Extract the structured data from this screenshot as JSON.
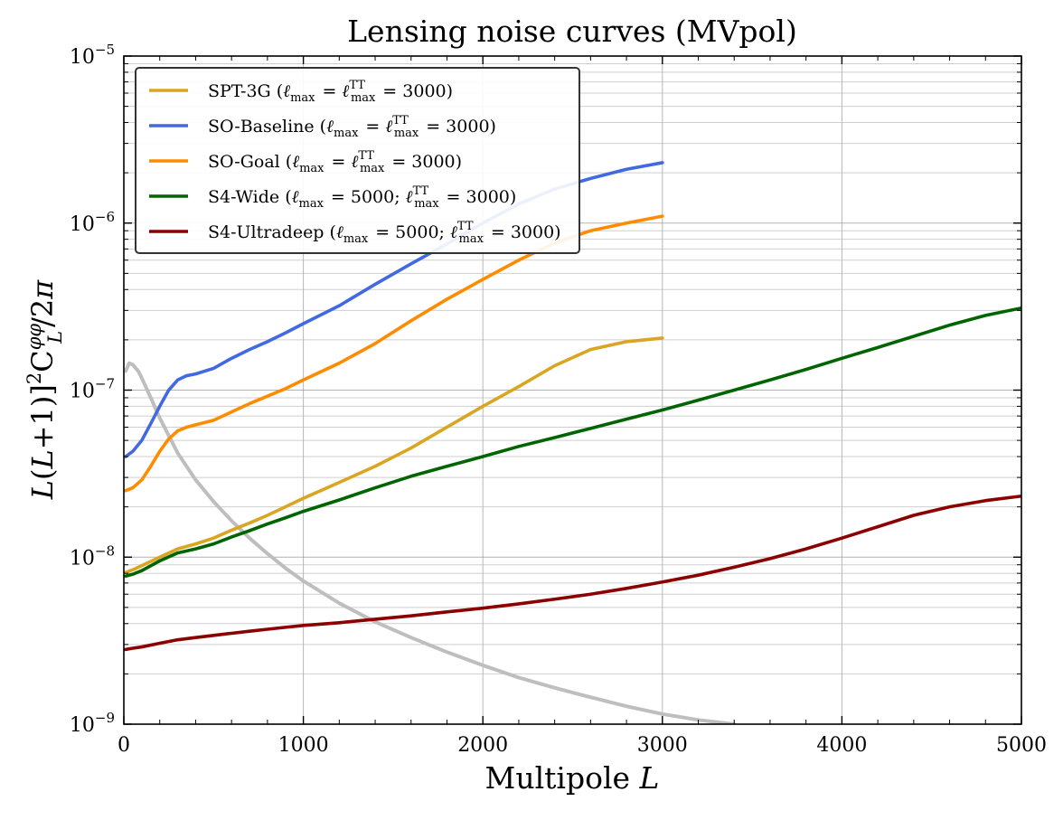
{
  "chart_data": {
    "type": "line",
    "title": "Lensing noise curves (MVpol)",
    "xlabel": "Multipole L",
    "ylabel": "L(L+1)]²C_L^φφ/2π",
    "ylabel_parts": {
      "lhs": "L(L+1)]",
      "sup2": "2",
      "C": "C",
      "sub": "L",
      "sup": "φφ",
      "rhs": "/2π"
    },
    "xlim": [
      0,
      5000
    ],
    "ylim": [
      1e-09,
      1e-05
    ],
    "yscale": "log",
    "grid": true,
    "legend_position": "top-left",
    "x_ticks": [
      {
        "value": 0,
        "label": "0"
      },
      {
        "value": 1000,
        "label": "1000"
      },
      {
        "value": 2000,
        "label": "2000"
      },
      {
        "value": 3000,
        "label": "3000"
      },
      {
        "value": 4000,
        "label": "4000"
      },
      {
        "value": 5000,
        "label": "5000"
      }
    ],
    "y_ticks": [
      {
        "value": 1e-09,
        "label": "10",
        "exp": "−9"
      },
      {
        "value": 1e-08,
        "label": "10",
        "exp": "−8"
      },
      {
        "value": 1e-07,
        "label": "10",
        "exp": "−7"
      },
      {
        "value": 1e-06,
        "label": "10",
        "exp": "−6"
      },
      {
        "value": 1e-05,
        "label": "10",
        "exp": "−5"
      }
    ],
    "series": [
      {
        "name": "SPT-3G (ℓmax = ℓTTmax = 3000)",
        "color": "#daa520",
        "x": [
          10,
          50,
          100,
          200,
          300,
          400,
          500,
          600,
          700,
          800,
          900,
          1000,
          1200,
          1400,
          1600,
          1800,
          2000,
          2200,
          2400,
          2600,
          2800,
          3000
        ],
        "y": [
          8.1e-09,
          8.4e-09,
          8.9e-09,
          1e-08,
          1.12e-08,
          1.2e-08,
          1.3e-08,
          1.45e-08,
          1.6e-08,
          1.78e-08,
          2e-08,
          2.25e-08,
          2.8e-08,
          3.5e-08,
          4.5e-08,
          6e-08,
          8e-08,
          1.05e-07,
          1.4e-07,
          1.75e-07,
          1.95e-07,
          2.05e-07
        ]
      },
      {
        "name": "SO-Baseline (ℓmax = ℓTTmax = 3000)",
        "color": "#4169e1",
        "x": [
          10,
          50,
          100,
          150,
          200,
          250,
          300,
          350,
          400,
          500,
          600,
          700,
          800,
          900,
          1000,
          1200,
          1400,
          1600,
          1800,
          2000,
          2200,
          2400,
          2600,
          2800,
          3000
        ],
        "y": [
          4e-08,
          4.3e-08,
          5e-08,
          6.3e-08,
          8e-08,
          1e-07,
          1.15e-07,
          1.22e-07,
          1.25e-07,
          1.35e-07,
          1.55e-07,
          1.75e-07,
          1.95e-07,
          2.2e-07,
          2.5e-07,
          3.2e-07,
          4.3e-07,
          5.7e-07,
          7.5e-07,
          1e-06,
          1.3e-06,
          1.6e-06,
          1.85e-06,
          2.1e-06,
          2.3e-06
        ]
      },
      {
        "name": "SO-Goal (ℓmax = ℓTTmax = 3000)",
        "color": "#ff8c00",
        "x": [
          10,
          50,
          100,
          150,
          200,
          250,
          300,
          350,
          400,
          500,
          600,
          700,
          800,
          900,
          1000,
          1200,
          1400,
          1600,
          1800,
          2000,
          2200,
          2400,
          2600,
          2800,
          3000
        ],
        "y": [
          2.5e-08,
          2.6e-08,
          2.9e-08,
          3.5e-08,
          4.3e-08,
          5.1e-08,
          5.7e-08,
          6e-08,
          6.2e-08,
          6.6e-08,
          7.4e-08,
          8.3e-08,
          9.2e-08,
          1.02e-07,
          1.15e-07,
          1.45e-07,
          1.9e-07,
          2.6e-07,
          3.5e-07,
          4.6e-07,
          6e-07,
          7.6e-07,
          9e-07,
          1e-06,
          1.1e-06
        ]
      },
      {
        "name": "S4-Wide (ℓmax = 5000; ℓTTmax = 3000)",
        "color": "#006400",
        "x": [
          10,
          50,
          100,
          200,
          300,
          400,
          500,
          600,
          700,
          800,
          900,
          1000,
          1200,
          1400,
          1600,
          1800,
          2000,
          2200,
          2400,
          2600,
          2800,
          3000,
          3200,
          3400,
          3600,
          3800,
          4000,
          4200,
          4400,
          4600,
          4800,
          5000
        ],
        "y": [
          7.7e-09,
          7.9e-09,
          8.3e-09,
          9.5e-09,
          1.06e-08,
          1.12e-08,
          1.2e-08,
          1.32e-08,
          1.44e-08,
          1.58e-08,
          1.72e-08,
          1.88e-08,
          2.2e-08,
          2.6e-08,
          3.05e-08,
          3.5e-08,
          4e-08,
          4.6e-08,
          5.2e-08,
          5.9e-08,
          6.7e-08,
          7.6e-08,
          8.7e-08,
          1e-07,
          1.15e-07,
          1.33e-07,
          1.55e-07,
          1.8e-07,
          2.1e-07,
          2.45e-07,
          2.8e-07,
          3.1e-07
        ]
      },
      {
        "name": "S4-Ultradeep (ℓmax = 5000; ℓTTmax = 3000)",
        "color": "#8b0000",
        "x": [
          10,
          50,
          100,
          200,
          300,
          400,
          500,
          600,
          700,
          800,
          900,
          1000,
          1200,
          1400,
          1600,
          1800,
          2000,
          2200,
          2400,
          2600,
          2800,
          3000,
          3200,
          3400,
          3600,
          3800,
          4000,
          4200,
          4400,
          4600,
          4800,
          5000
        ],
        "y": [
          2.8e-09,
          2.85e-09,
          2.9e-09,
          3.05e-09,
          3.2e-09,
          3.3e-09,
          3.4e-09,
          3.5e-09,
          3.6e-09,
          3.7e-09,
          3.8e-09,
          3.9e-09,
          4.05e-09,
          4.25e-09,
          4.45e-09,
          4.7e-09,
          4.95e-09,
          5.25e-09,
          5.6e-09,
          6e-09,
          6.5e-09,
          7.1e-09,
          7.8e-09,
          8.7e-09,
          9.8e-09,
          1.12e-08,
          1.3e-08,
          1.52e-08,
          1.78e-08,
          2e-08,
          2.18e-08,
          2.32e-08
        ]
      },
      {
        "name": "",
        "color": "#bebebe",
        "x": [
          10,
          30,
          50,
          80,
          100,
          150,
          200,
          300,
          400,
          500,
          600,
          700,
          800,
          900,
          1000,
          1200,
          1400,
          1600,
          1800,
          2000,
          2200,
          2400,
          2600,
          2800,
          3000,
          3200,
          3400
        ],
        "y": [
          1.3e-07,
          1.45e-07,
          1.42e-07,
          1.3e-07,
          1.18e-07,
          9e-08,
          6.8e-08,
          4.2e-08,
          2.9e-08,
          2.15e-08,
          1.65e-08,
          1.3e-08,
          1.05e-08,
          8.6e-09,
          7.2e-09,
          5.3e-09,
          4.1e-09,
          3.3e-09,
          2.7e-09,
          2.25e-09,
          1.9e-09,
          1.65e-09,
          1.45e-09,
          1.28e-09,
          1.15e-09,
          1.06e-09,
          1e-09
        ]
      }
    ],
    "legend": [
      {
        "prefix": "SPT-3G (",
        "parts": [
          [
            "ℓ",
            "i"
          ],
          [
            "max",
            "sub"
          ],
          [
            " = ",
            ""
          ],
          [
            "ℓ",
            "i"
          ],
          [
            "TT",
            "supsub",
            "max"
          ],
          [
            " = 3000)",
            ""
          ]
        ],
        "color": "#daa520"
      },
      {
        "prefix": "SO-Baseline (",
        "parts": [
          [
            "ℓ",
            "i"
          ],
          [
            "max",
            "sub"
          ],
          [
            " = ",
            ""
          ],
          [
            "ℓ",
            "i"
          ],
          [
            "TT",
            "supsub",
            "max"
          ],
          [
            " = 3000)",
            ""
          ]
        ],
        "color": "#4169e1"
      },
      {
        "prefix": "SO-Goal (",
        "parts": [
          [
            "ℓ",
            "i"
          ],
          [
            "max",
            "sub"
          ],
          [
            " = ",
            ""
          ],
          [
            "ℓ",
            "i"
          ],
          [
            "TT",
            "supsub",
            "max"
          ],
          [
            " = 3000)",
            ""
          ]
        ],
        "color": "#ff8c00"
      },
      {
        "prefix": "S4-Wide (",
        "parts": [
          [
            "ℓ",
            "i"
          ],
          [
            "max",
            "sub"
          ],
          [
            " = 5000; ",
            ""
          ],
          [
            "ℓ",
            "i"
          ],
          [
            "TT",
            "supsub",
            "max"
          ],
          [
            " = 3000)",
            ""
          ]
        ],
        "color": "#006400"
      },
      {
        "prefix": "S4-Ultradeep (",
        "parts": [
          [
            "ℓ",
            "i"
          ],
          [
            "max",
            "sub"
          ],
          [
            " = 5000; ",
            ""
          ],
          [
            "ℓ",
            "i"
          ],
          [
            "TT",
            "supsub",
            "max"
          ],
          [
            " = 3000)",
            ""
          ]
        ],
        "color": "#8b0000"
      }
    ]
  }
}
